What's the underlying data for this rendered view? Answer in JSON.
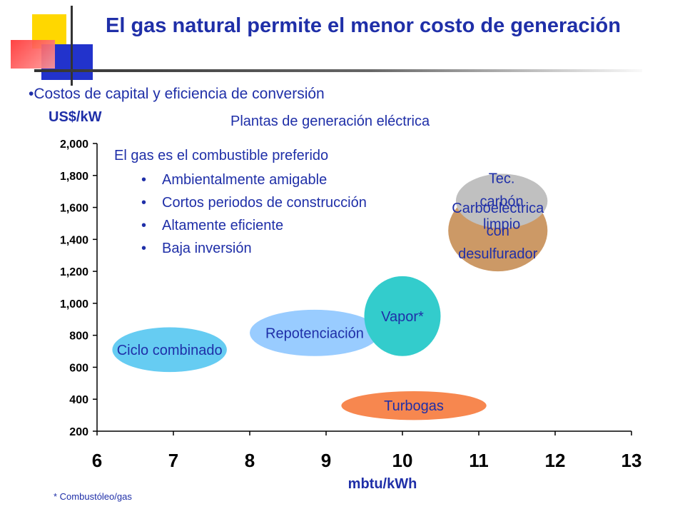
{
  "slide": {
    "title": "El gas natural permite el menor costo de generación",
    "bullet": "•Costos de capital y eficiencia de conversión",
    "footnote": "* Combustóleo/gas",
    "colors": {
      "title": "#1f2fa8",
      "deco_yellow": "#ffd700",
      "deco_red": "#ff3333",
      "deco_blue": "#2233cc",
      "deco_bar": "#333333"
    }
  },
  "chart_data": {
    "type": "bubble",
    "title": "Plantas de generación eléctrica",
    "ylabel": "US$/kW",
    "xlabel": "mbtu/kWh",
    "xlim": [
      6,
      13
    ],
    "ylim": [
      200,
      2000
    ],
    "x_ticks": [
      "6",
      "7",
      "8",
      "9",
      "10",
      "11",
      "12",
      "13"
    ],
    "y_ticks": [
      "200",
      "400",
      "600",
      "800",
      "1,000",
      "1,200",
      "1,400",
      "1,600",
      "1,800",
      "2,000"
    ],
    "y_tick_values": [
      200,
      400,
      600,
      800,
      1000,
      1200,
      1400,
      1600,
      1800,
      2000
    ],
    "grid": false,
    "legend": "none",
    "annotation": {
      "heading": "El gas es el combustible preferido",
      "bullets": [
        "Ambientalmente amigable",
        "Cortos periodos de construcción",
        "Altamente eficiente",
        "Baja inversión"
      ],
      "color": "#1f2fa8"
    },
    "series": [
      {
        "name": "Ciclo combinado",
        "label_lines": [
          "Ciclo combinado"
        ],
        "x": [
          6.2,
          7.7
        ],
        "y": [
          570,
          850
        ],
        "color": "#66ccf2"
      },
      {
        "name": "Repotenciación",
        "label_lines": [
          "Repotenciación"
        ],
        "x": [
          8.0,
          9.7
        ],
        "y": [
          670,
          960
        ],
        "color": "#99ccff"
      },
      {
        "name": "Vapor*",
        "label_lines": [
          "Vapor*"
        ],
        "x": [
          9.5,
          10.5
        ],
        "y": [
          670,
          1170
        ],
        "color": "#33cccc"
      },
      {
        "name": "Turbogas",
        "label_lines": [
          "Turbogas"
        ],
        "x": [
          9.2,
          11.1
        ],
        "y": [
          270,
          450
        ],
        "color": "#f7874f"
      },
      {
        "name": "Carboeléctrica con desulfurador",
        "label_lines": [
          "Carboeléctrica",
          "con",
          "desulfurador"
        ],
        "x": [
          10.6,
          11.9
        ],
        "y": [
          1200,
          1710
        ],
        "color": "#cc9966"
      },
      {
        "name": "Tec. carbón limpio",
        "label_lines": [
          "Tec.",
          "carbón",
          "limpio"
        ],
        "x": [
          10.7,
          11.9
        ],
        "y": [
          1470,
          1810
        ],
        "color": "#c0c0c0"
      }
    ]
  }
}
